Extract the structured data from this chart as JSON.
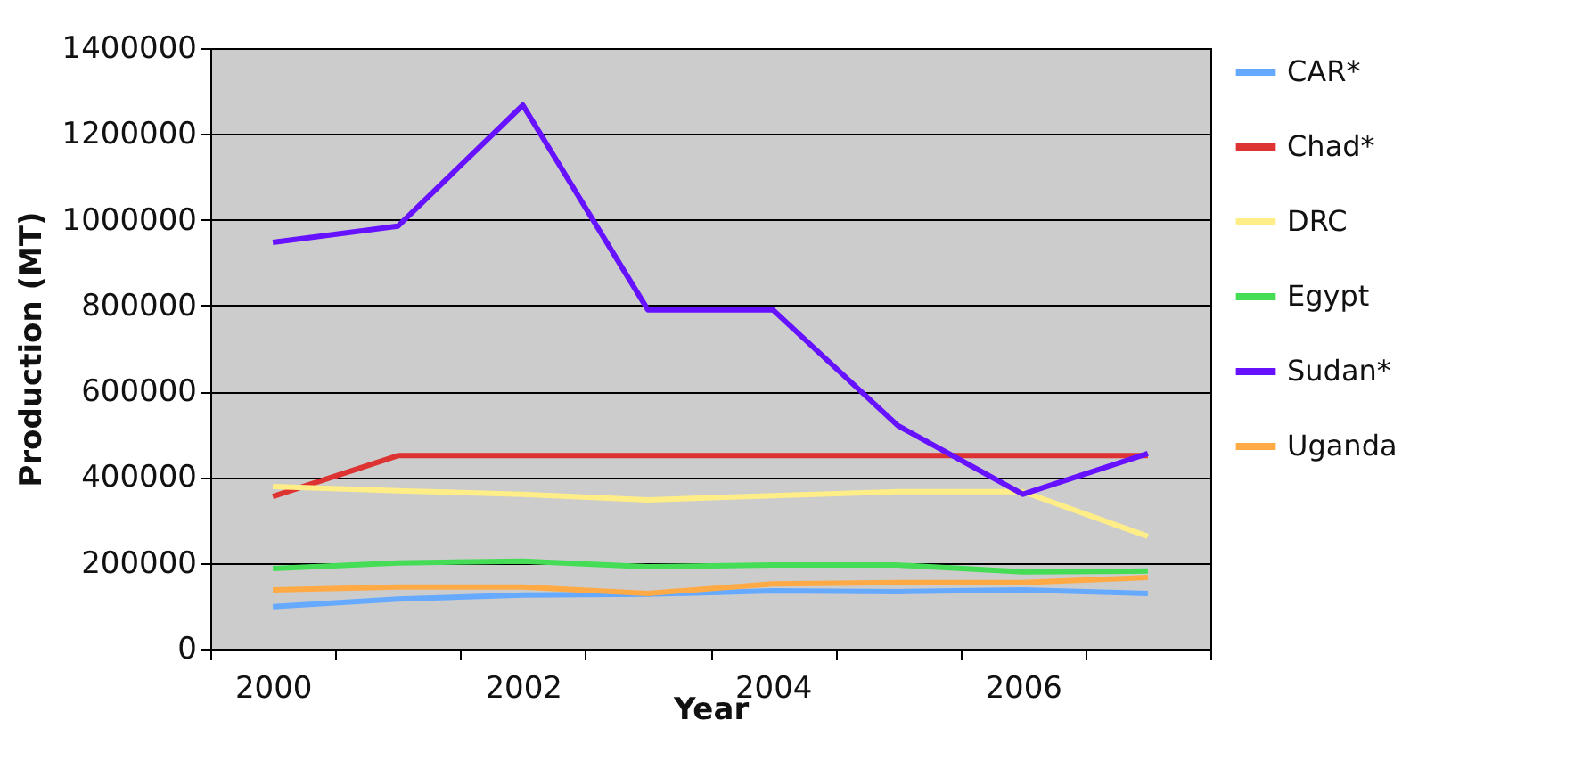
{
  "chart_data": {
    "type": "line",
    "xlabel": "Year",
    "ylabel": "Production (MT)",
    "categories": [
      "2000",
      null,
      "2002",
      null,
      "2004",
      null,
      "2006",
      null
    ],
    "ylim": [
      0,
      1400000
    ],
    "yticks": [
      0,
      200000,
      400000,
      600000,
      800000,
      1000000,
      1200000,
      1400000
    ],
    "grid": "y",
    "legend": "right",
    "marker": "none",
    "series": [
      {
        "name": "CAR*",
        "color": "#66aaff",
        "values": [
          98000,
          116000,
          125000,
          127000,
          135000,
          133000,
          137000,
          129000
        ]
      },
      {
        "name": "Chad*",
        "color": "#dd3333",
        "values": [
          355000,
          450000,
          450000,
          450000,
          450000,
          450000,
          450000,
          450000
        ]
      },
      {
        "name": "DRC",
        "color": "#ffee88",
        "values": [
          378000,
          368000,
          360000,
          347000,
          357000,
          366000,
          366000,
          262000
        ]
      },
      {
        "name": "Egypt",
        "color": "#44dd55",
        "values": [
          187000,
          200000,
          204000,
          191000,
          195000,
          195000,
          179000,
          181000
        ]
      },
      {
        "name": "Sudan*",
        "color": "#6611ff",
        "values": [
          947000,
          985000,
          1267000,
          790000,
          790000,
          520000,
          360000,
          455000
        ]
      },
      {
        "name": "Uganda",
        "color": "#ffaa44",
        "values": [
          137000,
          144000,
          144000,
          129000,
          151000,
          154000,
          154000,
          166000
        ]
      }
    ]
  }
}
